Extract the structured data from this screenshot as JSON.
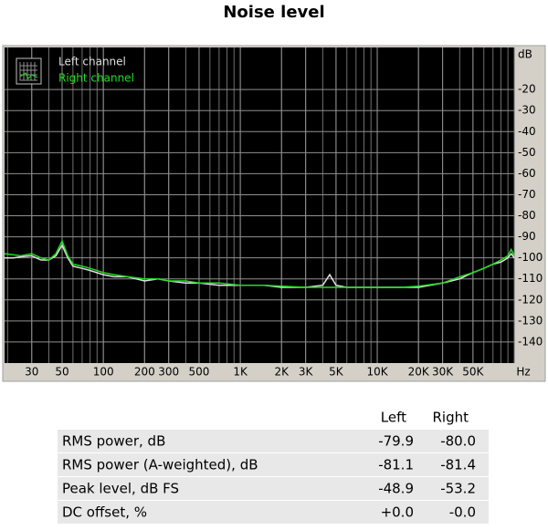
{
  "chart_data": {
    "type": "line",
    "title": "Noise level",
    "x": [
      19,
      22,
      25,
      30,
      35,
      40,
      45,
      50,
      55,
      60,
      70,
      80,
      100,
      120,
      150,
      200,
      250,
      300,
      400,
      500,
      700,
      1000,
      1500,
      2000,
      3000,
      4000,
      4500,
      5000,
      6000,
      8000,
      10000,
      15000,
      20000,
      30000,
      40000,
      50000,
      60000,
      70000,
      80000,
      90000,
      95000,
      100000
    ],
    "series": [
      {
        "name": "Left channel",
        "color": "#e0e0e0",
        "values": [
          -100,
          -100,
          -99.5,
          -99,
          -101,
          -101,
          -99,
          -94,
          -100,
          -104,
          -105,
          -106,
          -108,
          -109,
          -109,
          -111,
          -110,
          -111,
          -112,
          -112,
          -113,
          -113,
          -113,
          -114,
          -114,
          -113,
          -108,
          -113,
          -114,
          -114,
          -114,
          -114,
          -114,
          -112,
          -110,
          -107,
          -105,
          -103,
          -102,
          -100,
          -98,
          -100
        ]
      },
      {
        "name": "Right channel",
        "color": "#22dd22",
        "values": [
          -98,
          -98.5,
          -99,
          -98,
          -100,
          -101,
          -98,
          -92,
          -99,
          -103,
          -104,
          -105,
          -107,
          -108,
          -109,
          -110,
          -110,
          -111,
          -111,
          -112,
          -112,
          -113,
          -113,
          -113.5,
          -114,
          -114,
          -114,
          -114,
          -114,
          -114,
          -114,
          -114,
          -113.5,
          -112,
          -109,
          -107,
          -105,
          -103,
          -101,
          -99,
          -96,
          -99
        ]
      }
    ],
    "x_label": "Hz",
    "y_label": "dB",
    "xlim": [
      19,
      100000
    ],
    "ylim": [
      -150,
      0
    ],
    "log_x": true,
    "grid": true,
    "legend": "upper left",
    "xticks": [
      30,
      50,
      100,
      200,
      300,
      500,
      {
        "value": 1000,
        "label": "1K"
      },
      {
        "value": 2000,
        "label": "2K"
      },
      {
        "value": 3000,
        "label": "3K"
      },
      {
        "value": 5000,
        "label": "5K"
      },
      {
        "value": 10000,
        "label": "10K"
      },
      {
        "value": 20000,
        "label": "20K"
      },
      {
        "value": 30000,
        "label": "30K"
      },
      {
        "value": 50000,
        "label": "50K"
      }
    ],
    "yticks": [
      -20,
      -30,
      -40,
      -50,
      -60,
      -70,
      -80,
      -90,
      -100,
      -110,
      -120,
      -130,
      -140
    ]
  },
  "table": {
    "columns": [
      "Left",
      "Right"
    ],
    "rows": [
      [
        "RMS power, dB",
        "-79.9",
        "-80.0"
      ],
      [
        "RMS power (A-weighted), dB",
        "-81.1",
        "-81.4"
      ],
      [
        "Peak level, dB FS",
        "-48.9",
        "-53.2"
      ],
      [
        "DC offset, %",
        "+0.0",
        "-0.0"
      ]
    ]
  }
}
